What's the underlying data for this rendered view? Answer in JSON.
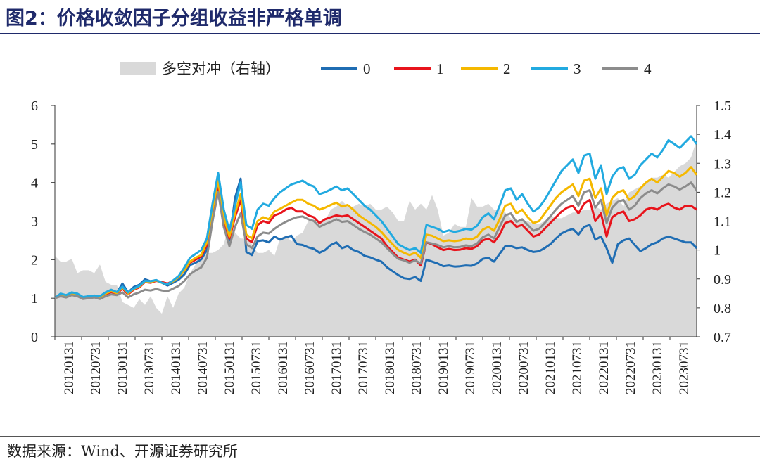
{
  "figure_title": "图2：价格收敛因子分组收益非严格单调",
  "source_note": "数据来源：Wind、开源证券研究所",
  "chart_data": {
    "type": "line",
    "legend": {
      "placement": "top",
      "items": [
        {
          "name": "多空对冲（右轴）",
          "kind": "area",
          "color": "#d9d9d9"
        },
        {
          "name": "0",
          "kind": "line",
          "color": "#1f6db3"
        },
        {
          "name": "1",
          "kind": "line",
          "color": "#e8141c"
        },
        {
          "name": "2",
          "kind": "line",
          "color": "#f5b800"
        },
        {
          "name": "3",
          "kind": "line",
          "color": "#22aae0"
        },
        {
          "name": "4",
          "kind": "line",
          "color": "#8c8c8c"
        }
      ]
    },
    "x_tick_labels": [
      "20120131",
      "20120731",
      "20130131",
      "20130731",
      "20140131",
      "20140731",
      "20150131",
      "20150731",
      "20160131",
      "20160731",
      "20170131",
      "20170731",
      "20180131",
      "20180731",
      "20190131",
      "20190731",
      "20200131",
      "20200731",
      "20210131",
      "20210731",
      "20220131",
      "20220731",
      "20230131",
      "20230731"
    ],
    "left_axis": {
      "ylim": [
        0,
        6
      ],
      "ticks": [
        "0",
        "1",
        "2",
        "3",
        "4",
        "5",
        "6"
      ]
    },
    "right_axis": {
      "ylim": [
        0.7,
        1.5
      ],
      "ticks": [
        "0.7",
        "0.8",
        "0.9",
        "1",
        "1.1",
        "1.2",
        "1.3",
        "1.4",
        "1.5"
      ]
    },
    "area_series": {
      "name": "多空对冲（右轴）",
      "axis": "right",
      "color": "#d9d9d9",
      "values": [
        0.98,
        0.96,
        0.96,
        0.97,
        0.92,
        0.93,
        0.93,
        0.92,
        0.95,
        0.89,
        0.88,
        0.88,
        0.82,
        0.81,
        0.8,
        0.83,
        0.81,
        0.84,
        0.8,
        0.78,
        0.84,
        0.8,
        0.85,
        0.87,
        0.92,
        0.95,
        0.97,
        0.99,
        0.99,
        1.0,
        1.02,
        1.09,
        1.06,
        1.04,
        1.04,
        1.02,
        0.99,
        0.99,
        1.0,
        0.98,
        1.04,
        1.05,
        1.03,
        1.05,
        1.06,
        1.1,
        1.11,
        1.1,
        1.1,
        1.14,
        1.15,
        1.17,
        1.15,
        1.15,
        1.16,
        1.15,
        1.16,
        1.14,
        1.14,
        1.15,
        1.13,
        1.1,
        1.1,
        1.17,
        1.14,
        1.16,
        1.14,
        1.19,
        1.14,
        1.05,
        1.06,
        1.09,
        1.08,
        1.08,
        1.18,
        1.15,
        1.15,
        1.16,
        1.14,
        1.14,
        1.13,
        1.11,
        1.1,
        1.1,
        1.1,
        1.09,
        1.09,
        1.1,
        1.12,
        1.11,
        1.11,
        1.12,
        1.13,
        1.13,
        1.14,
        1.14,
        1.15,
        1.14,
        1.16,
        1.17,
        1.18,
        1.15,
        1.2,
        1.21,
        1.22,
        1.23,
        1.25,
        1.25,
        1.26,
        1.25,
        1.27,
        1.29,
        1.3,
        1.32,
        1.38
      ]
    },
    "series": [
      {
        "name": "0",
        "axis": "left",
        "color": "#1f6db3",
        "values": [
          1.0,
          1.11,
          1.06,
          1.13,
          1.1,
          1.02,
          1.05,
          1.06,
          1.04,
          1.15,
          1.2,
          1.14,
          1.38,
          1.15,
          1.29,
          1.35,
          1.49,
          1.44,
          1.47,
          1.4,
          1.33,
          1.4,
          1.48,
          1.62,
          1.86,
          1.92,
          2.01,
          2.25,
          3.0,
          4.15,
          2.85,
          2.5,
          3.6,
          4.1,
          2.2,
          2.12,
          2.48,
          2.5,
          2.45,
          2.6,
          2.52,
          2.58,
          2.62,
          2.4,
          2.38,
          2.32,
          2.28,
          2.18,
          2.25,
          2.38,
          2.45,
          2.3,
          2.35,
          2.25,
          2.2,
          2.1,
          2.06,
          2.0,
          1.95,
          1.8,
          1.7,
          1.6,
          1.52,
          1.5,
          1.55,
          1.45,
          2.0,
          1.95,
          1.9,
          1.83,
          1.85,
          1.82,
          1.83,
          1.85,
          1.84,
          1.9,
          2.02,
          2.05,
          1.95,
          2.15,
          2.35,
          2.35,
          2.3,
          2.32,
          2.25,
          2.2,
          2.22,
          2.3,
          2.4,
          2.55,
          2.68,
          2.75,
          2.8,
          2.65,
          2.85,
          2.9,
          2.52,
          2.6,
          2.3,
          1.92,
          2.4,
          2.5,
          2.55,
          2.38,
          2.22,
          2.3,
          2.4,
          2.45,
          2.55,
          2.6,
          2.55,
          2.5,
          2.45,
          2.45,
          2.3
        ]
      },
      {
        "name": "1",
        "axis": "left",
        "color": "#e8141c",
        "values": [
          1.0,
          1.08,
          1.05,
          1.12,
          1.08,
          1.0,
          1.02,
          1.04,
          1.02,
          1.1,
          1.16,
          1.12,
          1.25,
          1.1,
          1.22,
          1.28,
          1.42,
          1.4,
          1.45,
          1.42,
          1.38,
          1.45,
          1.55,
          1.72,
          1.92,
          2.0,
          2.08,
          2.38,
          3.2,
          3.9,
          3.0,
          2.55,
          3.1,
          3.55,
          2.55,
          2.45,
          2.9,
          3.0,
          2.95,
          3.15,
          3.2,
          3.3,
          3.35,
          3.25,
          3.25,
          3.15,
          3.1,
          2.95,
          3.05,
          3.1,
          3.15,
          3.12,
          3.15,
          3.05,
          2.95,
          2.85,
          2.75,
          2.65,
          2.55,
          2.35,
          2.2,
          2.05,
          2.0,
          1.95,
          2.0,
          1.85,
          2.45,
          2.4,
          2.32,
          2.25,
          2.28,
          2.25,
          2.26,
          2.3,
          2.28,
          2.35,
          2.5,
          2.55,
          2.45,
          2.65,
          2.95,
          3.0,
          2.85,
          2.9,
          2.75,
          2.6,
          2.65,
          2.8,
          2.95,
          3.1,
          3.25,
          3.35,
          3.4,
          3.2,
          3.45,
          3.55,
          3.0,
          3.2,
          2.6,
          3.1,
          3.2,
          3.25,
          3.0,
          3.05,
          3.15,
          3.3,
          3.35,
          3.3,
          3.4,
          3.45,
          3.35,
          3.3,
          3.4,
          3.4,
          3.3
        ]
      },
      {
        "name": "2",
        "axis": "left",
        "color": "#f5b800",
        "values": [
          1.0,
          1.09,
          1.06,
          1.13,
          1.1,
          1.01,
          1.03,
          1.05,
          1.03,
          1.12,
          1.18,
          1.13,
          1.28,
          1.12,
          1.24,
          1.3,
          1.44,
          1.42,
          1.46,
          1.4,
          1.36,
          1.44,
          1.55,
          1.72,
          1.95,
          2.05,
          2.12,
          2.45,
          3.3,
          4.05,
          3.1,
          2.6,
          3.2,
          3.7,
          2.65,
          2.55,
          3.0,
          3.1,
          3.05,
          3.25,
          3.32,
          3.4,
          3.48,
          3.55,
          3.55,
          3.45,
          3.4,
          3.3,
          3.35,
          3.42,
          3.48,
          3.38,
          3.42,
          3.3,
          3.15,
          3.05,
          2.95,
          2.85,
          2.72,
          2.55,
          2.4,
          2.25,
          2.18,
          2.12,
          2.18,
          2.05,
          2.65,
          2.62,
          2.55,
          2.48,
          2.5,
          2.48,
          2.5,
          2.55,
          2.52,
          2.6,
          2.78,
          2.85,
          2.75,
          3.05,
          3.4,
          3.45,
          3.2,
          3.3,
          3.1,
          2.95,
          3.0,
          3.2,
          3.4,
          3.6,
          3.75,
          3.85,
          3.95,
          3.65,
          4.05,
          4.1,
          3.6,
          3.85,
          3.15,
          3.6,
          3.75,
          3.8,
          3.55,
          3.65,
          3.85,
          4.0,
          4.1,
          4.0,
          4.15,
          4.3,
          4.25,
          4.15,
          4.25,
          4.4,
          4.2
        ]
      },
      {
        "name": "3",
        "axis": "left",
        "color": "#22aae0",
        "values": [
          1.0,
          1.12,
          1.08,
          1.15,
          1.12,
          1.03,
          1.05,
          1.07,
          1.05,
          1.15,
          1.22,
          1.16,
          1.3,
          1.15,
          1.25,
          1.32,
          1.45,
          1.44,
          1.47,
          1.4,
          1.36,
          1.46,
          1.58,
          1.8,
          2.05,
          2.15,
          2.25,
          2.55,
          3.45,
          4.25,
          3.3,
          2.75,
          3.4,
          4.0,
          2.9,
          2.8,
          3.3,
          3.45,
          3.4,
          3.6,
          3.75,
          3.85,
          3.95,
          4.0,
          4.05,
          3.95,
          3.9,
          3.7,
          3.75,
          3.82,
          3.9,
          3.8,
          3.85,
          3.7,
          3.55,
          3.4,
          3.3,
          3.15,
          3.0,
          2.8,
          2.6,
          2.4,
          2.32,
          2.25,
          2.3,
          2.18,
          2.9,
          2.85,
          2.8,
          2.72,
          2.76,
          2.72,
          2.75,
          2.8,
          2.78,
          2.88,
          3.1,
          3.2,
          3.05,
          3.4,
          3.8,
          3.85,
          3.55,
          3.7,
          3.45,
          3.25,
          3.35,
          3.55,
          3.8,
          4.05,
          4.3,
          4.45,
          4.6,
          4.25,
          4.7,
          4.75,
          4.1,
          4.45,
          3.7,
          4.15,
          4.35,
          4.4,
          4.1,
          4.2,
          4.45,
          4.6,
          4.75,
          4.65,
          4.85,
          5.1,
          5.0,
          4.9,
          5.05,
          5.2,
          5.0
        ]
      },
      {
        "name": "4",
        "axis": "left",
        "color": "#8c8c8c",
        "values": [
          1.0,
          1.05,
          1.02,
          1.08,
          1.05,
          0.98,
          1.0,
          1.02,
          0.98,
          1.05,
          1.1,
          1.08,
          1.15,
          1.02,
          1.1,
          1.15,
          1.22,
          1.2,
          1.24,
          1.2,
          1.18,
          1.25,
          1.32,
          1.45,
          1.62,
          1.72,
          1.8,
          2.05,
          3.0,
          3.75,
          2.85,
          2.35,
          2.85,
          3.2,
          2.4,
          2.3,
          2.6,
          2.7,
          2.68,
          2.8,
          2.9,
          2.98,
          3.05,
          3.1,
          3.12,
          3.05,
          3.0,
          2.85,
          2.92,
          2.98,
          3.05,
          2.98,
          3.0,
          2.9,
          2.8,
          2.72,
          2.65,
          2.55,
          2.45,
          2.3,
          2.15,
          2.02,
          1.98,
          1.92,
          1.98,
          1.9,
          2.45,
          2.42,
          2.38,
          2.32,
          2.35,
          2.32,
          2.33,
          2.37,
          2.35,
          2.42,
          2.58,
          2.65,
          2.55,
          2.85,
          3.15,
          3.2,
          2.98,
          3.05,
          2.9,
          2.75,
          2.8,
          2.95,
          3.12,
          3.3,
          3.45,
          3.55,
          3.65,
          3.4,
          3.75,
          3.8,
          3.35,
          3.55,
          2.95,
          3.35,
          3.5,
          3.55,
          3.3,
          3.4,
          3.6,
          3.72,
          3.8,
          3.72,
          3.85,
          3.95,
          3.9,
          3.82,
          3.9,
          4.0,
          3.8
        ]
      }
    ]
  }
}
